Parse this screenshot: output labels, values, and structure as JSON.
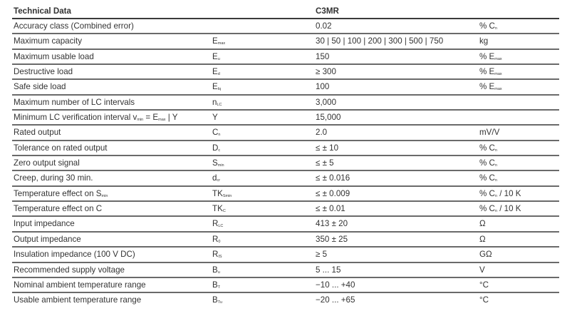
{
  "header": {
    "title": "Technical Data",
    "model": "C3MR"
  },
  "rows": [
    {
      "label": [
        {
          "t": "Accuracy class (Combined error)"
        }
      ],
      "symbol": [],
      "value": "0.02",
      "unit": [
        {
          "t": "% C"
        },
        {
          "s": "n"
        }
      ]
    },
    {
      "label": [
        {
          "t": "Maximum capacity"
        }
      ],
      "symbol": [
        {
          "t": "E"
        },
        {
          "s": "max"
        }
      ],
      "value": "30 | 50 | 100 | 200 | 300 | 500 | 750",
      "unit": [
        {
          "t": "kg"
        }
      ]
    },
    {
      "label": [
        {
          "t": "Maximum usable load"
        }
      ],
      "symbol": [
        {
          "t": "E"
        },
        {
          "s": "u"
        }
      ],
      "value": "150",
      "unit": [
        {
          "t": "% E"
        },
        {
          "s": "max"
        }
      ]
    },
    {
      "label": [
        {
          "t": "Destructive load"
        }
      ],
      "symbol": [
        {
          "t": "E"
        },
        {
          "s": "d"
        }
      ],
      "value": "≥ 300",
      "unit": [
        {
          "t": "% E"
        },
        {
          "s": "max"
        }
      ]
    },
    {
      "label": [
        {
          "t": "Safe side load"
        }
      ],
      "symbol": [
        {
          "t": "E"
        },
        {
          "s": "lq"
        }
      ],
      "value": "100",
      "unit": [
        {
          "t": "% E"
        },
        {
          "s": "max"
        }
      ]
    },
    {
      "label": [
        {
          "t": "Maximum number of LC intervals"
        }
      ],
      "symbol": [
        {
          "t": "n"
        },
        {
          "s": "LC"
        }
      ],
      "value": "3,000",
      "unit": []
    },
    {
      "label": [
        {
          "t": "Minimum LC verification interval v"
        },
        {
          "s": "min"
        },
        {
          "t": " = E"
        },
        {
          "s": "max"
        },
        {
          "t": " | Y"
        }
      ],
      "symbol": [
        {
          "t": "Y"
        }
      ],
      "value": "15,000",
      "unit": []
    },
    {
      "label": [
        {
          "t": "Rated output"
        }
      ],
      "symbol": [
        {
          "t": "C"
        },
        {
          "s": "n"
        }
      ],
      "value": "2.0",
      "unit": [
        {
          "t": "mV/V"
        }
      ]
    },
    {
      "label": [
        {
          "t": "Tolerance on rated output"
        }
      ],
      "symbol": [
        {
          "t": "D"
        },
        {
          "s": "c"
        }
      ],
      "value": "≤ ± 10",
      "unit": [
        {
          "t": "% C"
        },
        {
          "s": "n"
        }
      ]
    },
    {
      "label": [
        {
          "t": "Zero output signal"
        }
      ],
      "symbol": [
        {
          "t": "S"
        },
        {
          "s": "min"
        }
      ],
      "value": "≤ ± 5",
      "unit": [
        {
          "t": "% C"
        },
        {
          "s": "n"
        }
      ]
    },
    {
      "label": [
        {
          "t": "Creep, during 30 min."
        }
      ],
      "symbol": [
        {
          "t": "d"
        },
        {
          "s": "cr"
        }
      ],
      "value": "≤ ± 0.016",
      "unit": [
        {
          "t": "% C"
        },
        {
          "s": "n"
        }
      ]
    },
    {
      "label": [
        {
          "t": "Temperature effect on S"
        },
        {
          "s": "min"
        }
      ],
      "symbol": [
        {
          "t": "TK"
        },
        {
          "s": "Smin"
        }
      ],
      "value": "≤ ± 0.009",
      "unit": [
        {
          "t": "% C"
        },
        {
          "s": "n"
        },
        {
          "t": " / 10 K"
        }
      ]
    },
    {
      "label": [
        {
          "t": "Temperature effect on C"
        }
      ],
      "symbol": [
        {
          "t": "TK"
        },
        {
          "s": "C"
        }
      ],
      "value": "≤ ± 0.01",
      "unit": [
        {
          "t": "% C"
        },
        {
          "s": "n"
        },
        {
          "t": " / 10 K"
        }
      ]
    },
    {
      "label": [
        {
          "t": "Input impedance"
        }
      ],
      "symbol": [
        {
          "t": "R"
        },
        {
          "s": "LC"
        }
      ],
      "value": "413 ± 20",
      "unit": [
        {
          "t": "Ω"
        }
      ]
    },
    {
      "label": [
        {
          "t": "Output impedance"
        }
      ],
      "symbol": [
        {
          "t": "R"
        },
        {
          "s": "0"
        }
      ],
      "value": "350 ± 25",
      "unit": [
        {
          "t": "Ω"
        }
      ]
    },
    {
      "label": [
        {
          "t": "Insulation impedance (100 V DC)"
        }
      ],
      "symbol": [
        {
          "t": "R"
        },
        {
          "s": "IS"
        }
      ],
      "value": "≥ 5",
      "unit": [
        {
          "t": "GΩ"
        }
      ]
    },
    {
      "label": [
        {
          "t": "Recommended supply voltage"
        }
      ],
      "symbol": [
        {
          "t": "B"
        },
        {
          "s": "u"
        }
      ],
      "value": "5 ... 15",
      "unit": [
        {
          "t": "V"
        }
      ]
    },
    {
      "label": [
        {
          "t": "Nominal ambient temperature range"
        }
      ],
      "symbol": [
        {
          "t": "B"
        },
        {
          "s": "T"
        }
      ],
      "value": "−10 ... +40",
      "unit": [
        {
          "t": "°C"
        }
      ]
    },
    {
      "label": [
        {
          "t": "Usable ambient temperature range"
        }
      ],
      "symbol": [
        {
          "t": "B"
        },
        {
          "s": "Tu"
        }
      ],
      "value": "−20 ... +65",
      "unit": [
        {
          "t": "°C"
        }
      ]
    }
  ]
}
